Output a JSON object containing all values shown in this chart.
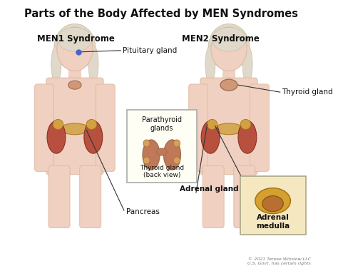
{
  "title": "Parts of the Body Affected by MEN Syndromes",
  "title_fontsize": 10.5,
  "title_fontweight": "bold",
  "background_color": "#ffffff",
  "left_label": "MEN1 Syndrome",
  "right_label": "MEN2 Syndrome",
  "label_fontsize": 8.5,
  "label_fontweight": "bold",
  "copyright": "© 2021 Terese Winslow LLC\nU.S. Govt. has certain rights",
  "copyright_fontsize": 4.5,
  "skin_color": "#f0d0c0",
  "skin_edge": "#ddb8a0",
  "hair_color": "#e0d8c8",
  "hair_edge": "#c8c0a8",
  "kidney_color": "#b85040",
  "kidney_edge": "#8a3020",
  "pancreas_color": "#d4a855",
  "pancreas_edge": "#b08030",
  "adrenal_color": "#d4a040",
  "adrenal_edge": "#a07820",
  "thyroid_color": "#d09878",
  "thyroid_edge": "#a07050",
  "thyroid_inset_color": "#c07858",
  "pituitary_color": "#4466cc",
  "box_bg": "#fffef5",
  "box_edge": "#aaaaaa",
  "adrenal_box_bg": "#f5e8c0",
  "adrenal_box_edge": "#aaa888",
  "line_color": "#333333",
  "text_color": "#111111"
}
